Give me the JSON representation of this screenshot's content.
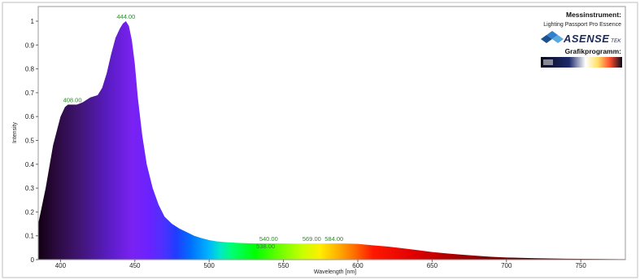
{
  "chart_data": {
    "type": "area",
    "xlabel": "Wavelength [nm]",
    "ylabel": "Intensity",
    "xlim": [
      385,
      780
    ],
    "ylim": [
      0,
      1.0
    ],
    "xticks": [
      400,
      450,
      500,
      550,
      600,
      650,
      700,
      750
    ],
    "yticks": [
      0,
      0.1,
      0.2,
      0.3,
      0.4,
      0.5,
      0.6,
      0.7,
      0.8,
      0.9,
      1
    ],
    "ytick_labels": [
      "0",
      "0.1",
      "0.2",
      "0.3",
      "0.4",
      "0.5",
      "0.6",
      "0.7",
      "0.8",
      "0.9",
      "1"
    ],
    "fill": "spectral (visible-light colours by wavelength)",
    "x": [
      385,
      390,
      395,
      400,
      403,
      405,
      408,
      411,
      415,
      420,
      425,
      428,
      431,
      434,
      437,
      440,
      442,
      444,
      446,
      448,
      450,
      452,
      455,
      458,
      462,
      466,
      470,
      475,
      480,
      485,
      490,
      495,
      500,
      505,
      510,
      520,
      530,
      538,
      540,
      550,
      560,
      569,
      575,
      584,
      590,
      600,
      610,
      620,
      630,
      640,
      650,
      660,
      670,
      680,
      690,
      700,
      720,
      740,
      760,
      780
    ],
    "y": [
      0.15,
      0.3,
      0.48,
      0.6,
      0.64,
      0.65,
      0.65,
      0.65,
      0.66,
      0.68,
      0.69,
      0.72,
      0.78,
      0.86,
      0.93,
      0.97,
      0.99,
      1.0,
      0.98,
      0.92,
      0.82,
      0.68,
      0.52,
      0.4,
      0.3,
      0.23,
      0.18,
      0.15,
      0.13,
      0.115,
      0.1,
      0.09,
      0.082,
      0.077,
      0.074,
      0.07,
      0.068,
      0.068,
      0.068,
      0.068,
      0.067,
      0.068,
      0.068,
      0.068,
      0.068,
      0.066,
      0.06,
      0.055,
      0.048,
      0.04,
      0.032,
      0.026,
      0.021,
      0.016,
      0.012,
      0.009,
      0.006,
      0.004,
      0.003,
      0.002
    ],
    "peak_labels": [
      {
        "x": 408,
        "y": 0.65,
        "text": "408.00"
      },
      {
        "x": 444,
        "y": 1.0,
        "text": "444.00"
      },
      {
        "x": 540,
        "y": 0.068,
        "text": "540.00"
      },
      {
        "x": 538,
        "y": 0.068,
        "text": "538.00"
      },
      {
        "x": 569,
        "y": 0.068,
        "text": "569.00"
      },
      {
        "x": 584,
        "y": 0.068,
        "text": "584.00"
      }
    ],
    "grid": false,
    "legend": "none"
  },
  "info_box": {
    "instrument_heading": "Messinstrument:",
    "instrument_name": "Lighting Passport Pro Essence",
    "brand_main": "ASENSE",
    "brand_suffix": "TEK",
    "program_heading": "Grafikprogramm:"
  }
}
